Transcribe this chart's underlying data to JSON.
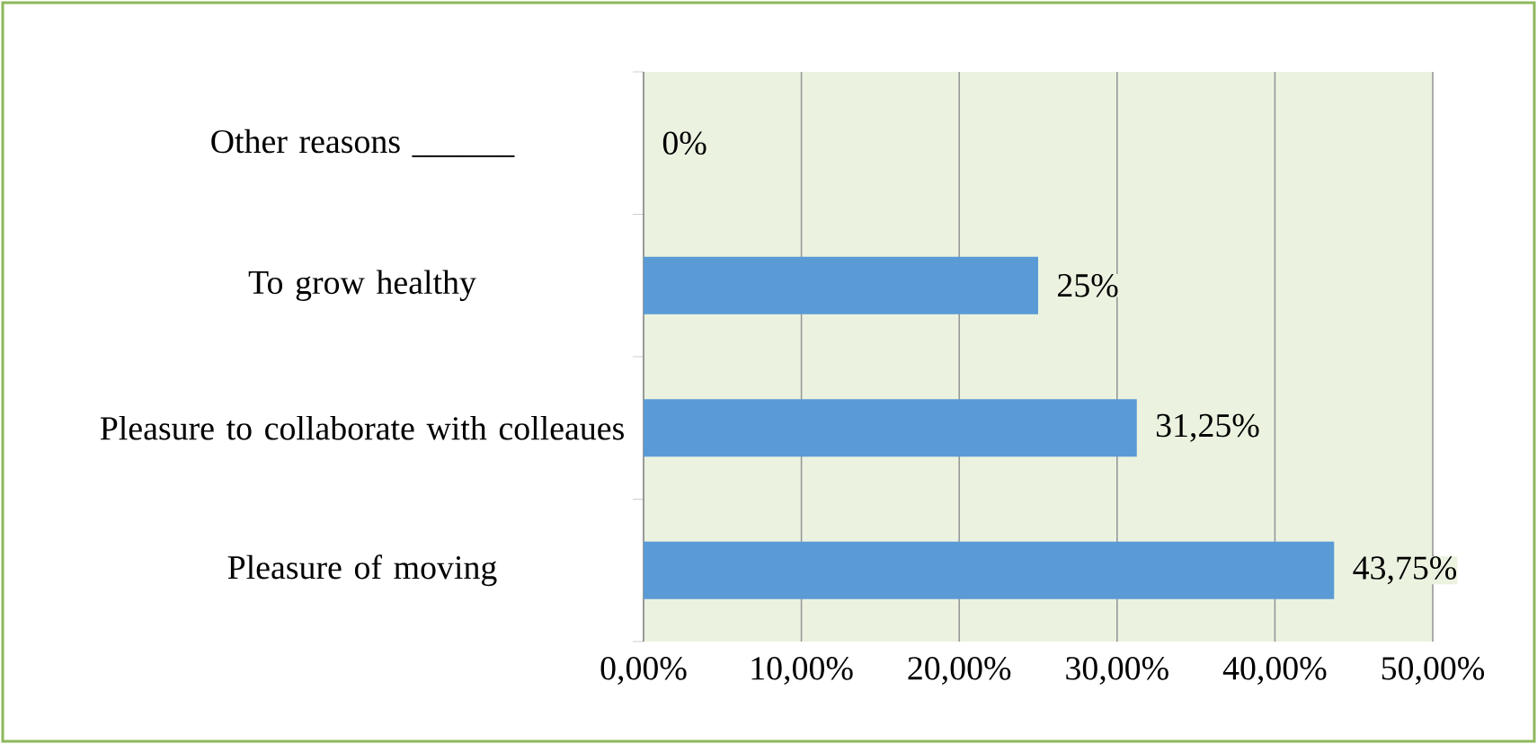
{
  "chart_data": {
    "type": "bar",
    "orientation": "horizontal",
    "categories": [
      "Other reasons      ______",
      "To grow healthy",
      "Pleasure to collaborate with colleaues",
      "Pleasure of moving"
    ],
    "values": [
      0,
      25,
      31.25,
      43.75
    ],
    "value_labels": [
      "0%",
      "25%",
      "31,25%",
      "43,75%"
    ],
    "color": "#5b9bd5",
    "xlim": [
      0,
      50
    ],
    "xticks": [
      {
        "value": 0,
        "label": "0,00%"
      },
      {
        "value": 10,
        "label": "10,00%"
      },
      {
        "value": 20,
        "label": "20,00%"
      },
      {
        "value": 30,
        "label": "30,00%"
      },
      {
        "value": 40,
        "label": "40,00%"
      },
      {
        "value": 50,
        "label": "50,00%"
      }
    ],
    "grid": "x"
  }
}
